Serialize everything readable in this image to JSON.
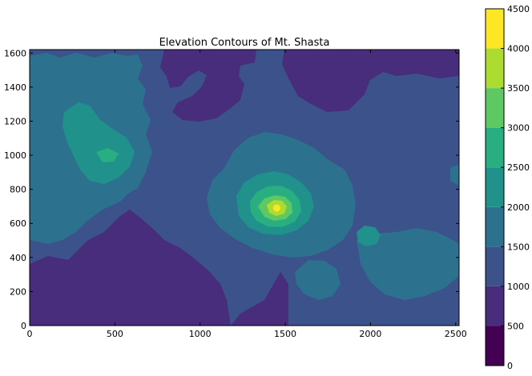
{
  "chart_data": {
    "type": "heatmap",
    "subtype": "filled-contour",
    "title": "Elevation Contours of Mt. Shasta",
    "xlabel": "",
    "ylabel": "",
    "xlim": [
      0,
      2520
    ],
    "ylim": [
      0,
      1620
    ],
    "x_ticks": [
      0,
      500,
      1000,
      1500,
      2000,
      2500
    ],
    "y_ticks": [
      0,
      200,
      400,
      600,
      800,
      1000,
      1200,
      1400,
      1600
    ],
    "levels": [
      0,
      500,
      1000,
      1500,
      2000,
      2500,
      3000,
      3500,
      4000,
      4500
    ],
    "level_colors": [
      "#440154",
      "#472d7b",
      "#3b528b",
      "#2c728e",
      "#21918c",
      "#28ae80",
      "#5ec962",
      "#addc30",
      "#fde725"
    ],
    "colorbar": {
      "placement": "right",
      "ticks": [
        0,
        500,
        1000,
        1500,
        2000,
        2500,
        3000,
        3500,
        4000,
        4500
      ]
    },
    "peak": {
      "x": 1450,
      "y": 690
    },
    "grid": false
  }
}
